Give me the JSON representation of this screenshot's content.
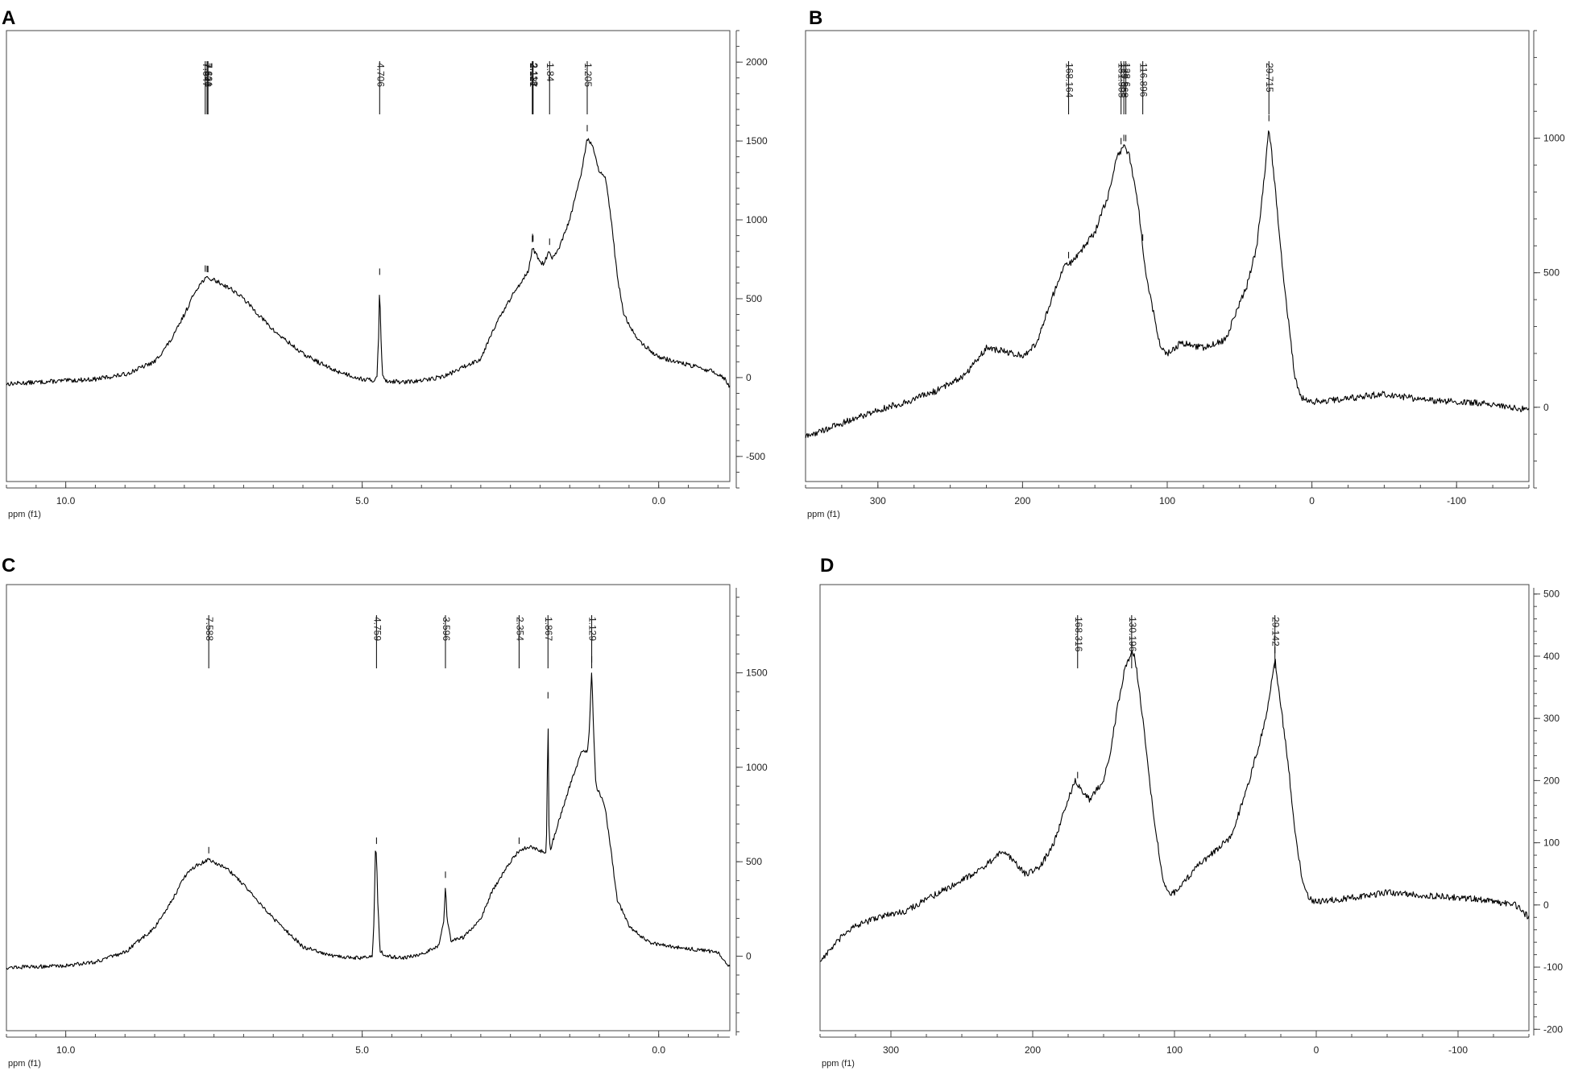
{
  "figure": {
    "background": "#ffffff",
    "line_color": "#000000",
    "frame_color": "#444444"
  },
  "chart_data": [
    {
      "panel_label": "A",
      "type": "line",
      "xlabel": "ppm (f1)",
      "x_reversed": true,
      "xlim": [
        11.0,
        -1.2
      ],
      "ylim": [
        -700,
        2200
      ],
      "x_ticks": [
        10.0,
        5.0,
        0.0
      ],
      "x_tick_labels": [
        "10.0",
        "5.0",
        "0.0"
      ],
      "y_ticks": [
        -500,
        0,
        500,
        1000,
        1500,
        2000
      ],
      "y_tick_labels": [
        "-500",
        "0",
        "500",
        "1000",
        "1500",
        "2000"
      ],
      "x_minor_step": 0.5,
      "y_minor_step": 100,
      "noise": 14,
      "spectrum_points": [
        [
          11.0,
          -40
        ],
        [
          10.5,
          -30
        ],
        [
          10.0,
          -20
        ],
        [
          9.5,
          -10
        ],
        [
          9.0,
          20
        ],
        [
          8.5,
          100
        ],
        [
          8.2,
          250
        ],
        [
          8.0,
          400
        ],
        [
          7.8,
          560
        ],
        [
          7.65,
          630
        ],
        [
          7.5,
          620
        ],
        [
          7.2,
          560
        ],
        [
          7.0,
          500
        ],
        [
          6.5,
          300
        ],
        [
          6.0,
          150
        ],
        [
          5.5,
          50
        ],
        [
          5.0,
          -10
        ],
        [
          4.8,
          -20
        ],
        [
          4.75,
          20
        ],
        [
          4.72,
          300
        ],
        [
          4.706,
          610
        ],
        [
          4.69,
          300
        ],
        [
          4.66,
          20
        ],
        [
          4.6,
          -20
        ],
        [
          4.3,
          -30
        ],
        [
          4.0,
          -20
        ],
        [
          3.6,
          10
        ],
        [
          3.0,
          120
        ],
        [
          2.8,
          300
        ],
        [
          2.5,
          500
        ],
        [
          2.3,
          620
        ],
        [
          2.2,
          680
        ],
        [
          2.15,
          760
        ],
        [
          2.127,
          830
        ],
        [
          2.1,
          800
        ],
        [
          2.0,
          740
        ],
        [
          1.95,
          720
        ],
        [
          1.84,
          800
        ],
        [
          1.8,
          750
        ],
        [
          1.7,
          800
        ],
        [
          1.5,
          1000
        ],
        [
          1.3,
          1300
        ],
        [
          1.205,
          1520
        ],
        [
          1.1,
          1450
        ],
        [
          1.0,
          1300
        ],
        [
          0.9,
          1270
        ],
        [
          0.8,
          1000
        ],
        [
          0.7,
          650
        ],
        [
          0.6,
          420
        ],
        [
          0.5,
          330
        ],
        [
          0.3,
          220
        ],
        [
          0.0,
          130
        ],
        [
          -0.5,
          80
        ],
        [
          -0.9,
          40
        ],
        [
          -1.1,
          0
        ],
        [
          -1.2,
          -60
        ]
      ],
      "peak_picks": [
        {
          "label": "7.647",
          "ppm": 7.647
        },
        {
          "label": "7.616",
          "ppm": 7.616
        },
        {
          "label": "7.601",
          "ppm": 7.601
        },
        {
          "label": "4.706",
          "ppm": 4.706
        },
        {
          "label": "2.131",
          "ppm": 2.131
        },
        {
          "label": "2.127",
          "ppm": 2.127
        },
        {
          "label": "2.118",
          "ppm": 2.118
        },
        {
          "label": "1.84",
          "ppm": 1.84
        },
        {
          "label": "1.205",
          "ppm": 1.205
        }
      ]
    },
    {
      "panel_label": "B",
      "type": "line",
      "xlabel": "ppm (f1)",
      "x_reversed": true,
      "xlim": [
        350,
        -150
      ],
      "ylim": [
        -300,
        1400
      ],
      "x_ticks": [
        300,
        200,
        100,
        0,
        -100
      ],
      "x_tick_labels": [
        "300",
        "200",
        "100",
        "0",
        "-100"
      ],
      "y_ticks": [
        0,
        500,
        1000
      ],
      "y_tick_labels": [
        "0",
        "500",
        "1000"
      ],
      "x_minor_step": 25,
      "y_minor_step": 100,
      "noise": 12,
      "spectrum_points": [
        [
          350,
          -110
        ],
        [
          330,
          -70
        ],
        [
          300,
          -10
        ],
        [
          280,
          20
        ],
        [
          260,
          60
        ],
        [
          240,
          120
        ],
        [
          225,
          220
        ],
        [
          215,
          210
        ],
        [
          200,
          190
        ],
        [
          190,
          240
        ],
        [
          180,
          400
        ],
        [
          172,
          520
        ],
        [
          168,
          530
        ],
        [
          160,
          580
        ],
        [
          150,
          650
        ],
        [
          140,
          800
        ],
        [
          135,
          930
        ],
        [
          131,
          960
        ],
        [
          129,
          970
        ],
        [
          126,
          930
        ],
        [
          120,
          750
        ],
        [
          115,
          500
        ],
        [
          105,
          230
        ],
        [
          100,
          200
        ],
        [
          90,
          240
        ],
        [
          75,
          220
        ],
        [
          60,
          250
        ],
        [
          45,
          450
        ],
        [
          38,
          600
        ],
        [
          33,
          850
        ],
        [
          29.7,
          1040
        ],
        [
          26,
          850
        ],
        [
          20,
          500
        ],
        [
          12,
          120
        ],
        [
          8,
          40
        ],
        [
          0,
          20
        ],
        [
          -20,
          30
        ],
        [
          -50,
          50
        ],
        [
          -80,
          25
        ],
        [
          -120,
          15
        ],
        [
          -150,
          -10
        ]
      ],
      "peak_picks": [
        {
          "label": "168.164",
          "ppm": 168.164
        },
        {
          "label": "131.905",
          "ppm": 131.905
        },
        {
          "label": "129.968",
          "ppm": 129.968
        },
        {
          "label": "128.6",
          "ppm": 128.6
        },
        {
          "label": "116.896",
          "ppm": 116.896
        },
        {
          "label": "29.715",
          "ppm": 29.715
        }
      ]
    },
    {
      "panel_label": "C",
      "type": "line",
      "xlabel": "ppm (f1)",
      "x_reversed": true,
      "xlim": [
        11.0,
        -1.2
      ],
      "ylim": [
        -420,
        1950
      ],
      "x_ticks": [
        10.0,
        5.0,
        0.0
      ],
      "x_tick_labels": [
        "10.0",
        "5.0",
        "0.0"
      ],
      "y_ticks": [
        0,
        500,
        1000,
        1500
      ],
      "y_tick_labels": [
        "0",
        "500",
        "1000",
        "1500"
      ],
      "x_minor_step": 0.5,
      "y_minor_step": 100,
      "noise": 10,
      "spectrum_points": [
        [
          11.0,
          -60
        ],
        [
          10.0,
          -50
        ],
        [
          9.5,
          -30
        ],
        [
          9.0,
          20
        ],
        [
          8.5,
          150
        ],
        [
          8.2,
          300
        ],
        [
          8.0,
          420
        ],
        [
          7.8,
          480
        ],
        [
          7.588,
          510
        ],
        [
          7.3,
          470
        ],
        [
          7.0,
          380
        ],
        [
          6.5,
          200
        ],
        [
          6.0,
          50
        ],
        [
          5.5,
          0
        ],
        [
          5.0,
          -10
        ],
        [
          4.83,
          0
        ],
        [
          4.8,
          200
        ],
        [
          4.78,
          550
        ],
        [
          4.759,
          560
        ],
        [
          4.74,
          300
        ],
        [
          4.7,
          30
        ],
        [
          4.6,
          0
        ],
        [
          4.3,
          -10
        ],
        [
          4.0,
          10
        ],
        [
          3.7,
          60
        ],
        [
          3.62,
          200
        ],
        [
          3.596,
          380
        ],
        [
          3.57,
          200
        ],
        [
          3.5,
          80
        ],
        [
          3.3,
          100
        ],
        [
          3.0,
          200
        ],
        [
          2.8,
          350
        ],
        [
          2.5,
          500
        ],
        [
          2.354,
          560
        ],
        [
          2.2,
          580
        ],
        [
          2.0,
          560
        ],
        [
          1.9,
          540
        ],
        [
          1.885,
          700
        ],
        [
          1.867,
          1330
        ],
        [
          1.85,
          700
        ],
        [
          1.83,
          560
        ],
        [
          1.7,
          700
        ],
        [
          1.5,
          900
        ],
        [
          1.3,
          1080
        ],
        [
          1.2,
          1080
        ],
        [
          1.17,
          1200
        ],
        [
          1.129,
          1520
        ],
        [
          1.1,
          1200
        ],
        [
          1.06,
          900
        ],
        [
          1.0,
          870
        ],
        [
          0.9,
          780
        ],
        [
          0.8,
          550
        ],
        [
          0.7,
          300
        ],
        [
          0.5,
          160
        ],
        [
          0.2,
          80
        ],
        [
          0.0,
          60
        ],
        [
          -0.5,
          40
        ],
        [
          -1.0,
          20
        ],
        [
          -1.2,
          -60
        ]
      ],
      "peak_picks": [
        {
          "label": "7.588",
          "ppm": 7.588
        },
        {
          "label": "4.759",
          "ppm": 4.759
        },
        {
          "label": "3.596",
          "ppm": 3.596
        },
        {
          "label": "2.354",
          "ppm": 2.354
        },
        {
          "label": "1.867",
          "ppm": 1.867
        },
        {
          "label": "1.129",
          "ppm": 1.129
        }
      ]
    },
    {
      "panel_label": "D",
      "type": "line",
      "xlabel": "ppm (f1)",
      "x_reversed": true,
      "xlim": [
        350,
        -150
      ],
      "ylim": [
        -210,
        510
      ],
      "x_ticks": [
        300,
        200,
        100,
        0,
        -100
      ],
      "x_tick_labels": [
        "300",
        "200",
        "100",
        "0",
        "-100"
      ],
      "y_ticks": [
        -200,
        -100,
        0,
        100,
        200,
        300,
        400,
        500
      ],
      "y_tick_labels": [
        "-200",
        "-100",
        "0",
        "100",
        "200",
        "300",
        "400",
        "500"
      ],
      "x_minor_step": 25,
      "y_minor_step": 20,
      "noise": 5,
      "spectrum_points": [
        [
          350,
          -90
        ],
        [
          330,
          -40
        ],
        [
          310,
          -20
        ],
        [
          290,
          -10
        ],
        [
          270,
          15
        ],
        [
          250,
          40
        ],
        [
          235,
          60
        ],
        [
          222,
          85
        ],
        [
          215,
          75
        ],
        [
          205,
          50
        ],
        [
          195,
          60
        ],
        [
          185,
          100
        ],
        [
          175,
          170
        ],
        [
          170,
          200
        ],
        [
          165,
          180
        ],
        [
          160,
          170
        ],
        [
          150,
          200
        ],
        [
          145,
          250
        ],
        [
          140,
          320
        ],
        [
          135,
          380
        ],
        [
          130,
          405
        ],
        [
          128,
          400
        ],
        [
          125,
          350
        ],
        [
          120,
          250
        ],
        [
          115,
          150
        ],
        [
          108,
          40
        ],
        [
          103,
          15
        ],
        [
          95,
          30
        ],
        [
          85,
          60
        ],
        [
          75,
          80
        ],
        [
          60,
          110
        ],
        [
          50,
          180
        ],
        [
          40,
          260
        ],
        [
          34,
          320
        ],
        [
          29.1,
          395
        ],
        [
          25,
          320
        ],
        [
          20,
          230
        ],
        [
          15,
          120
        ],
        [
          10,
          40
        ],
        [
          5,
          10
        ],
        [
          0,
          5
        ],
        [
          -20,
          10
        ],
        [
          -50,
          20
        ],
        [
          -80,
          15
        ],
        [
          -110,
          10
        ],
        [
          -140,
          0
        ],
        [
          -150,
          -20
        ]
      ],
      "peak_picks": [
        {
          "label": "168.316",
          "ppm": 168.316
        },
        {
          "label": "130.196",
          "ppm": 130.196
        },
        {
          "label": "29.142",
          "ppm": 29.142
        }
      ]
    }
  ]
}
